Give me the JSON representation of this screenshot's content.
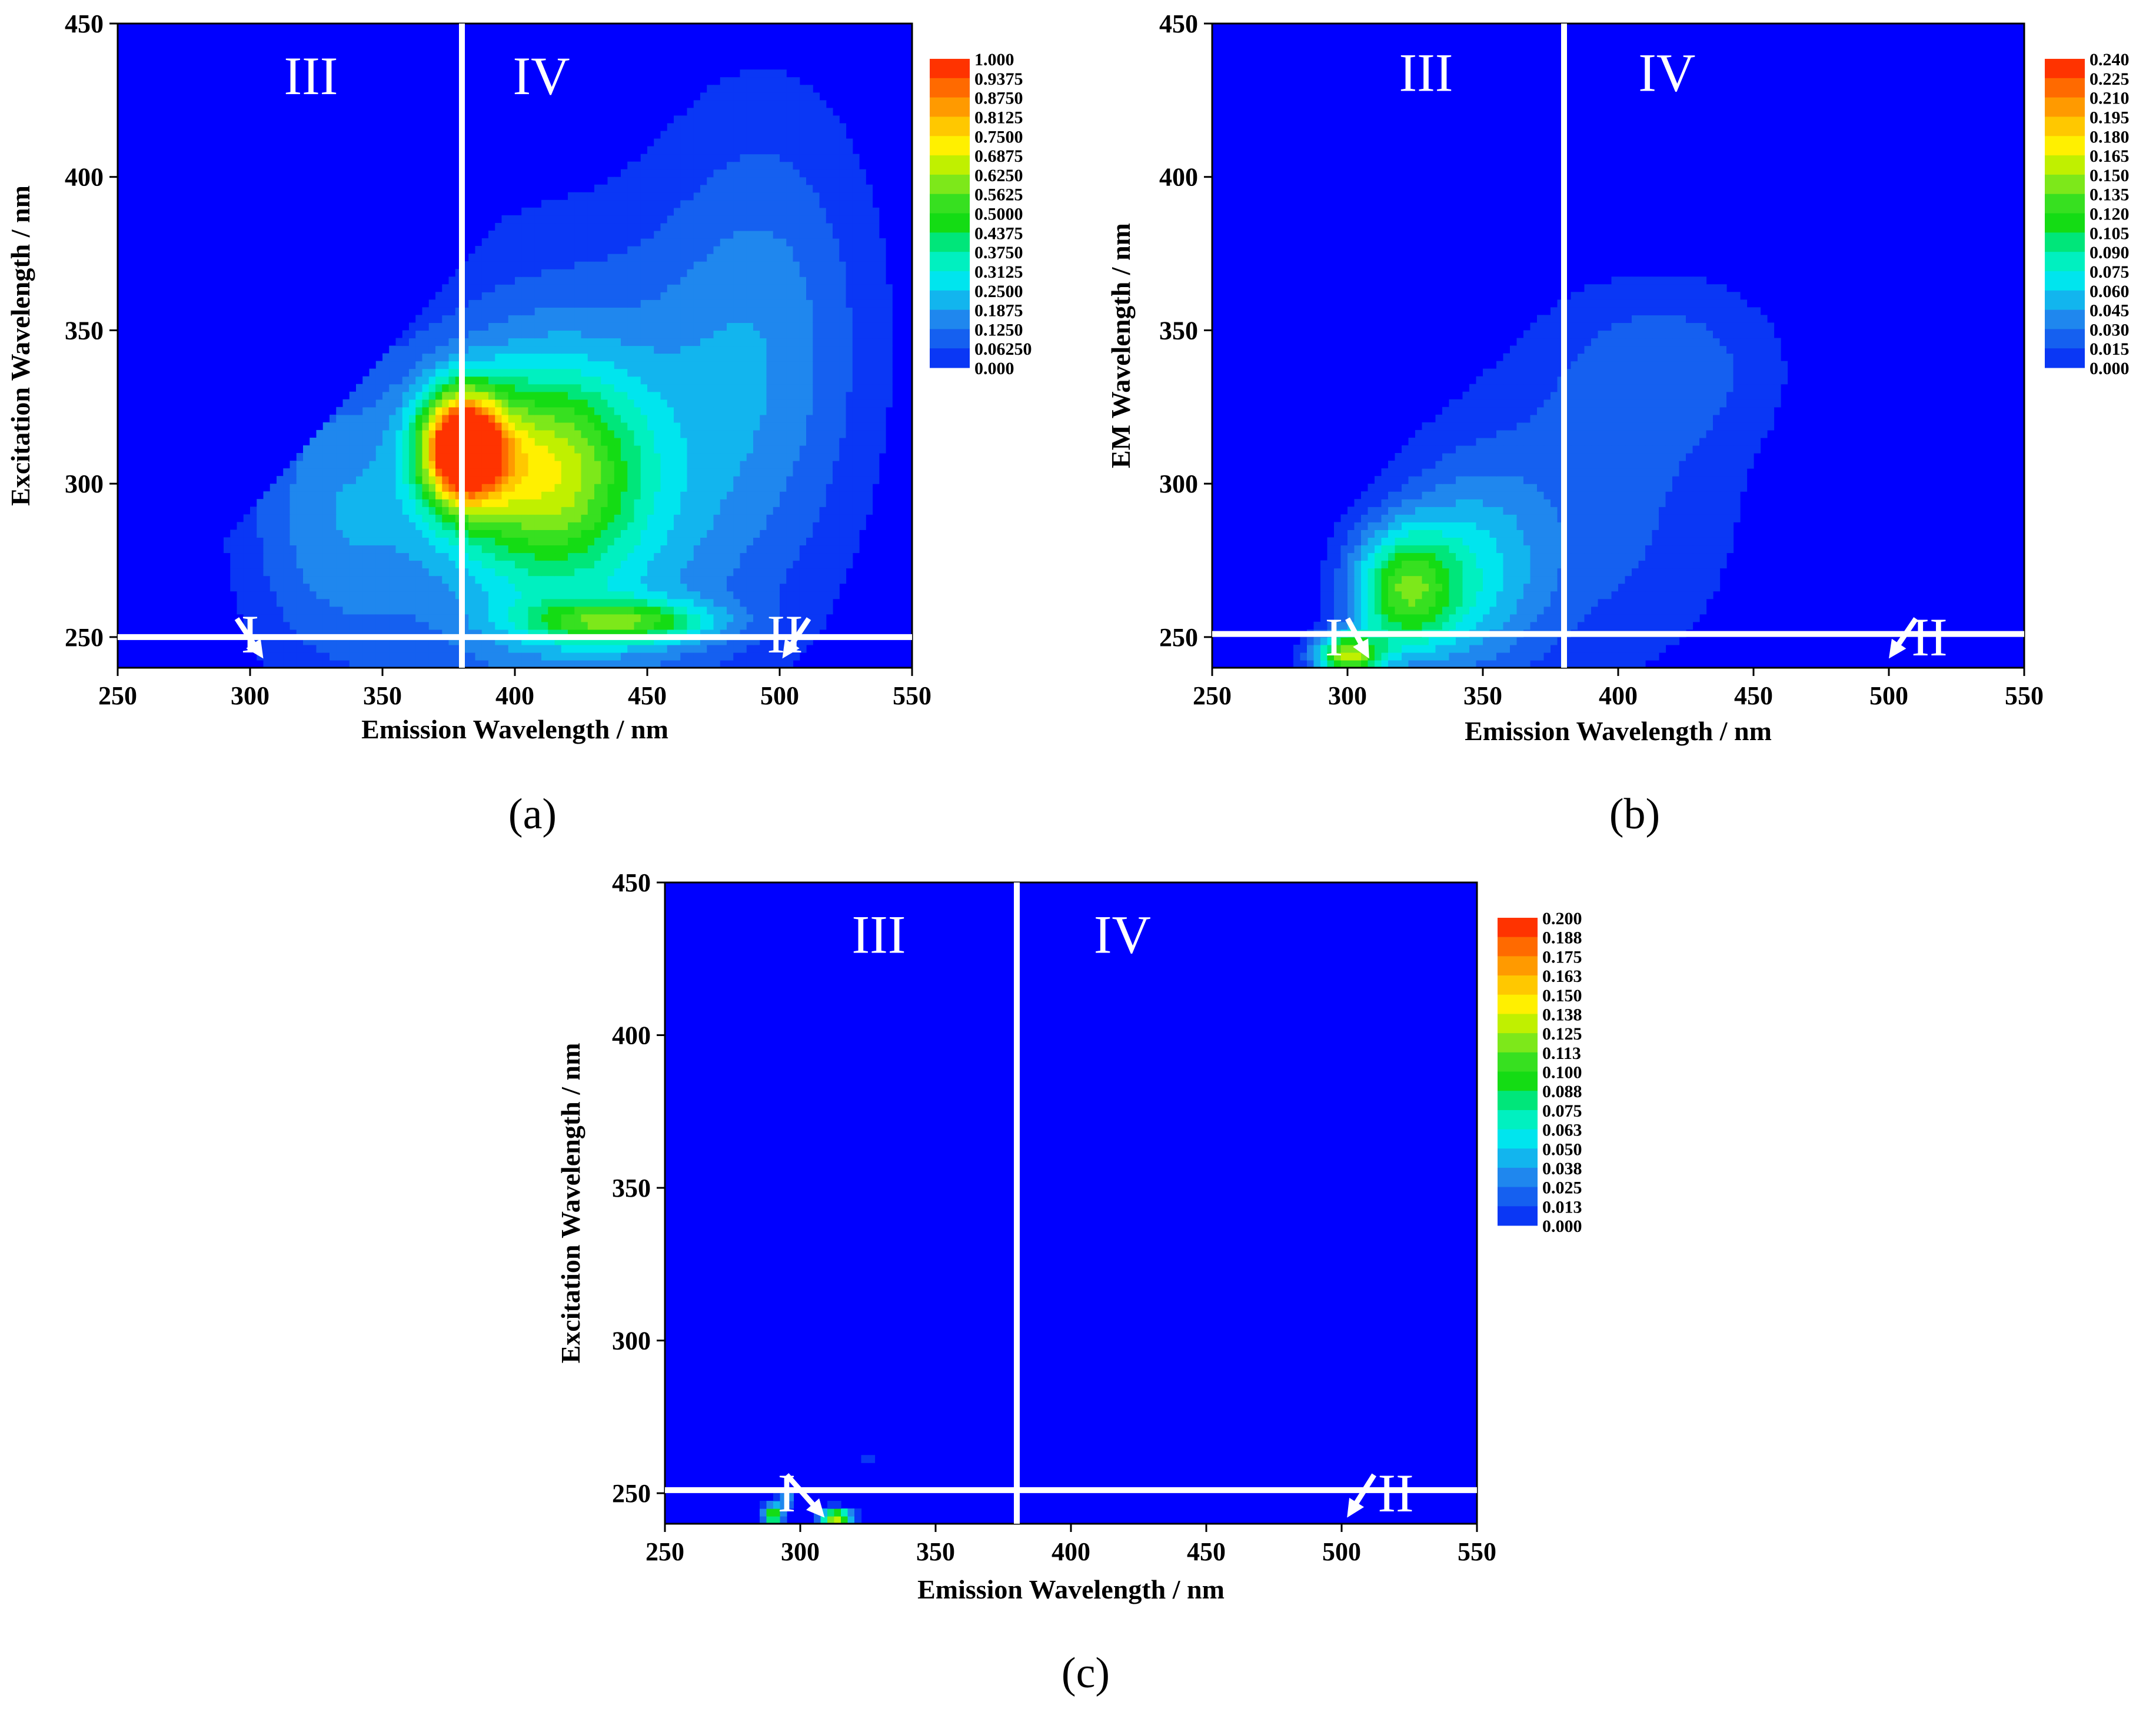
{
  "figure": {
    "panel_labels": [
      "(a)",
      "(b)",
      "(c)"
    ]
  },
  "colormap": [
    "#0000ff",
    "#0a37f5",
    "#1560f0",
    "#1f87ee",
    "#12b5ee",
    "#00e5ee",
    "#00f0c0",
    "#00e67a",
    "#14dc14",
    "#37e020",
    "#7de81a",
    "#c0f000",
    "#fff000",
    "#ffc800",
    "#ff9a00",
    "#ff6a00",
    "#ff3300"
  ],
  "chart_data": [
    {
      "id": "a",
      "type": "heatmap",
      "subtype": "contour",
      "title": "",
      "xlabel": "Emission Wavelength  / nm",
      "ylabel": "Excitation Wavelength / nm",
      "xlim": [
        250,
        550
      ],
      "ylim": [
        240,
        450
      ],
      "xticks": [
        "250",
        "300",
        "350",
        "400",
        "450",
        "500",
        "550"
      ],
      "yticks": [
        "250",
        "300",
        "350",
        "400",
        "450"
      ],
      "colorbar_labels": [
        "1.000",
        "0.9375",
        "0.8750",
        "0.8125",
        "0.7500",
        "0.6875",
        "0.6250",
        "0.5625",
        "0.5000",
        "0.4375",
        "0.3750",
        "0.3125",
        "0.2500",
        "0.1875",
        "0.1250",
        "0.06250",
        "0.000"
      ],
      "zmax": 1.0,
      "regions": [
        "I",
        "II",
        "III",
        "IV"
      ],
      "divider_em": 380,
      "divider_ex": 250,
      "region_label_positions": [
        [
          300,
          245
        ],
        [
          502,
          245
        ],
        [
          323,
          427
        ],
        [
          410,
          427
        ]
      ],
      "region_arrows": [
        [
          295,
          256,
          305,
          243
        ],
        [
          511,
          256,
          501,
          243
        ]
      ],
      "peaks": [
        {
          "em": 380,
          "ex": 312,
          "amp": 1.0,
          "sx": 11,
          "sy": 13
        },
        {
          "em": 410,
          "ex": 305,
          "amp": 0.45,
          "sx": 24,
          "sy": 22
        },
        {
          "em": 420,
          "ex": 290,
          "amp": 0.33,
          "sx": 45,
          "sy": 55
        },
        {
          "em": 440,
          "ex": 255,
          "amp": 0.4,
          "sx": 25,
          "sy": 5
        },
        {
          "em": 330,
          "ex": 290,
          "amp": 0.2,
          "sx": 25,
          "sy": 38
        },
        {
          "em": 495,
          "ex": 350,
          "amp": 0.2,
          "sx": 30,
          "sy": 55
        }
      ]
    },
    {
      "id": "b",
      "type": "heatmap",
      "subtype": "contour",
      "title": "",
      "xlabel": "Emission Wavelength / nm",
      "ylabel": "EM Wavelength  / nm",
      "xlim": [
        250,
        550
      ],
      "ylim": [
        240,
        450
      ],
      "xticks": [
        "250",
        "300",
        "350",
        "400",
        "450",
        "500",
        "550"
      ],
      "yticks": [
        "250",
        "300",
        "350",
        "400",
        "450"
      ],
      "colorbar_labels": [
        "0.240",
        "0.225",
        "0.210",
        "0.195",
        "0.180",
        "0.165",
        "0.150",
        "0.135",
        "0.120",
        "0.105",
        "0.090",
        "0.075",
        "0.060",
        "0.045",
        "0.030",
        "0.015",
        "0.000"
      ],
      "zmax": 0.24,
      "regions": [
        "I",
        "II",
        "III",
        "IV"
      ],
      "divider_em": 380,
      "divider_ex": 251,
      "region_label_positions": [
        [
          295,
          244
        ],
        [
          515,
          244
        ],
        [
          329,
          428
        ],
        [
          418,
          428
        ]
      ],
      "region_arrows": [
        [
          300,
          256,
          308,
          243
        ],
        [
          510,
          256,
          500,
          243
        ]
      ],
      "peaks": [
        {
          "em": 320,
          "ex": 265,
          "amp": 0.12,
          "sx": 14,
          "sy": 15
        },
        {
          "em": 345,
          "ex": 270,
          "amp": 0.06,
          "sx": 20,
          "sy": 25
        },
        {
          "em": 300,
          "ex": 244,
          "amp": 0.15,
          "sx": 9,
          "sy": 5
        },
        {
          "em": 390,
          "ex": 290,
          "amp": 0.035,
          "sx": 40,
          "sy": 40
        },
        {
          "em": 420,
          "ex": 340,
          "amp": 0.03,
          "sx": 30,
          "sy": 20
        }
      ]
    },
    {
      "id": "c",
      "type": "heatmap",
      "subtype": "contour",
      "title": "",
      "xlabel": "Emission Wavelength / nm",
      "ylabel": "Excitation Wavelength / nm",
      "xlim": [
        250,
        550
      ],
      "ylim": [
        240,
        450
      ],
      "xticks": [
        "250",
        "300",
        "350",
        "400",
        "450",
        "500",
        "550"
      ],
      "yticks": [
        "250",
        "300",
        "350",
        "400",
        "450"
      ],
      "colorbar_labels": [
        "0.200",
        "0.188",
        "0.175",
        "0.163",
        "0.150",
        "0.138",
        "0.125",
        "0.113",
        "0.100",
        "0.088",
        "0.075",
        "0.063",
        "0.050",
        "0.038",
        "0.025",
        "0.013",
        "0.000"
      ],
      "zmax": 0.2,
      "regions": [
        "I",
        "II",
        "III",
        "IV"
      ],
      "divider_em": 380,
      "divider_ex": 251,
      "region_label_positions": [
        [
          295,
          244
        ],
        [
          520,
          244
        ],
        [
          329,
          427
        ],
        [
          419,
          427
        ]
      ],
      "region_arrows": [
        [
          295,
          256,
          309,
          242
        ],
        [
          512,
          256,
          502,
          242
        ]
      ],
      "peaks": [
        {
          "em": 290,
          "ex": 243,
          "amp": 0.13,
          "sx": 2.5,
          "sy": 2.5
        },
        {
          "em": 313,
          "ex": 242,
          "amp": 0.16,
          "sx": 4,
          "sy": 2
        },
        {
          "em": 295,
          "ex": 248,
          "amp": 0.06,
          "sx": 2,
          "sy": 1.5
        },
        {
          "em": 325,
          "ex": 262,
          "amp": 0.03,
          "sx": 1.5,
          "sy": 1.5
        }
      ]
    }
  ]
}
